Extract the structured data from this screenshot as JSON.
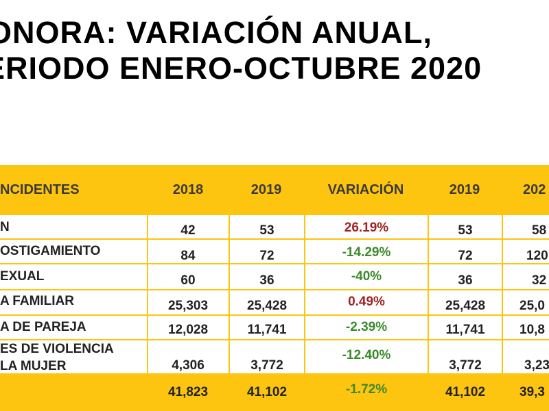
{
  "title": {
    "line1": "ONORA: VARIACIÓN ANUAL,",
    "line2": "ERIODO ENERO-OCTUBRE 2020"
  },
  "colors": {
    "header_bg": "#fdc50f",
    "negative_variation": "#3a8a2a",
    "positive_variation": "#a02323"
  },
  "table": {
    "headers": {
      "incidents": "NCIDENTES",
      "y2018": "2018",
      "y2019": "2019",
      "variation": "VARIACIÓN",
      "y2019b": "2019",
      "y2020": "202"
    },
    "rows": [
      {
        "name": "N",
        "v2018": "42",
        "v2019": "53",
        "variation": "26.19%",
        "trend": "pos",
        "v2019b": "53",
        "v2020": "58"
      },
      {
        "name": "OSTIGAMIENTO",
        "v2018": "84",
        "v2019": "72",
        "variation": "-14.29%",
        "trend": "neg",
        "v2019b": "72",
        "v2020": "120"
      },
      {
        "name": "EXUAL",
        "v2018": "60",
        "v2019": "36",
        "variation": "-40%",
        "trend": "neg",
        "v2019b": "36",
        "v2020": "32"
      },
      {
        "name": "A FAMILIAR",
        "v2018": "25,303",
        "v2019": "25,428",
        "variation": "0.49%",
        "trend": "pos",
        "v2019b": "25,428",
        "v2020": "25,0"
      },
      {
        "name": "A DE PAREJA",
        "v2018": "12,028",
        "v2019": "11,741",
        "variation": "-2.39%",
        "trend": "neg",
        "v2019b": "11,741",
        "v2020": "10,8"
      },
      {
        "name": "ES DE VIOLENCIA",
        "name_line2": "LA MUJER",
        "v2018": "4,306",
        "v2019": "3,772",
        "variation": "-12.40%",
        "trend": "neg",
        "v2019b": "3,772",
        "v2020": "3,23"
      }
    ],
    "total": {
      "v2018": "41,823",
      "v2019": "41,102",
      "variation": "-1.72%",
      "v2019b": "41,102",
      "v2020": "39,3"
    }
  }
}
